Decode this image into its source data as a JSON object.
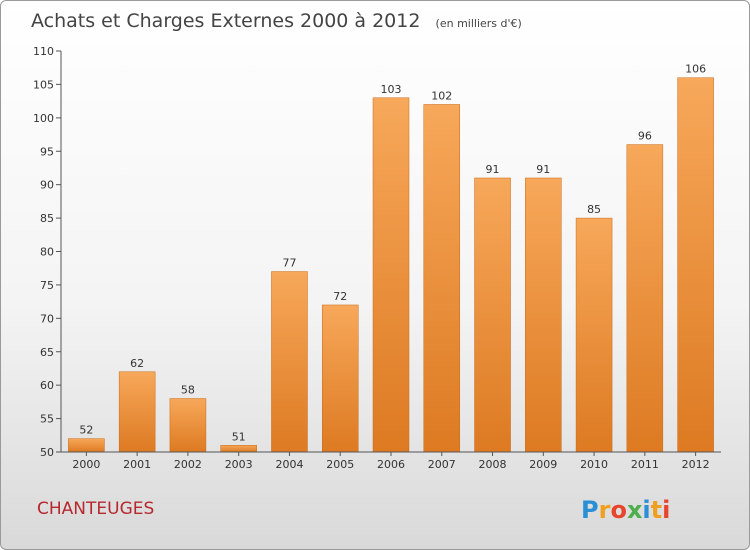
{
  "chart_data": {
    "type": "bar",
    "title": "Achats et Charges Externes 2000 à 2012",
    "subtitle": "(en milliers d'€)",
    "categories": [
      "2000",
      "2001",
      "2002",
      "2003",
      "2004",
      "2005",
      "2006",
      "2007",
      "2008",
      "2009",
      "2010",
      "2011",
      "2012"
    ],
    "values": [
      52,
      62,
      58,
      51,
      77,
      72,
      103,
      102,
      91,
      91,
      85,
      96,
      106
    ],
    "ylim": [
      50,
      110
    ],
    "yticks": [
      50,
      55,
      60,
      65,
      70,
      75,
      80,
      85,
      90,
      95,
      100,
      105,
      110
    ],
    "grid": false,
    "colors": {
      "bar_light": "#f7a85a",
      "bar_dark": "#dd7a22",
      "bar_edge": "#c86a18",
      "axis": "#555555"
    }
  },
  "place_name": "CHANTEUGES",
  "logo": {
    "letters": [
      "P",
      "r",
      "o",
      "x",
      "i",
      "t",
      "i"
    ],
    "colors": [
      "#2b8fd6",
      "#f0a020",
      "#e8452f",
      "#4cae4c",
      "#2b8fd6",
      "#f0a020",
      "#e8452f"
    ]
  }
}
